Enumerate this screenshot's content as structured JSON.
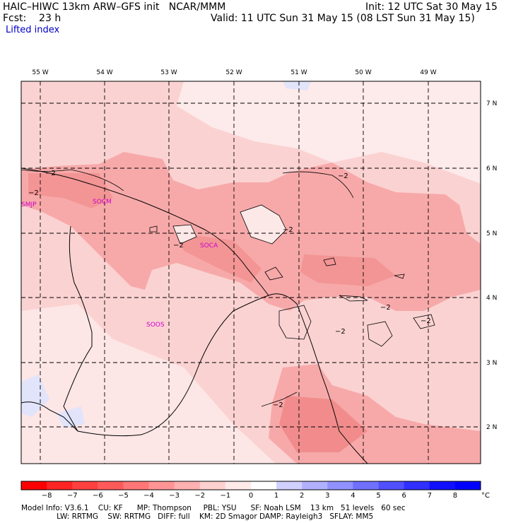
{
  "header": {
    "title_left": "HAIC–HIWC 13km ARW–GFS init   NCAR/MMM",
    "fcst": "Fcst:    23 h",
    "init": "Init: 12 UTC Sat 30 May 15",
    "valid": "Valid: 11 UTC Sun 31 May 15 (08 LST Sun 31 May 15)",
    "field": "Lifted index"
  },
  "map": {
    "lon_labels": [
      "55 W",
      "54 W",
      "53 W",
      "52 W",
      "51 W",
      "50 W",
      "49 W"
    ],
    "lat_labels": [
      "7 N",
      "6 N",
      "5 N",
      "4 N",
      "3 N",
      "2 N"
    ],
    "stations": [
      "SMJP",
      "SOCM",
      "SOCA",
      "SOOS"
    ],
    "contour_label": "−2",
    "colors": {
      "strong": "#f28c8c",
      "mid": "#f7a9a9",
      "light": "#fbd2d2",
      "pale": "#fde8e8",
      "blue": "#e2e4fb",
      "station": "#cc00cc"
    }
  },
  "colorbar": {
    "ticks": [
      "−8",
      "−7",
      "−6",
      "−5",
      "−4",
      "−3",
      "−2",
      "−1",
      "0",
      "1",
      "2",
      "3",
      "4",
      "5",
      "6",
      "7",
      "8"
    ],
    "unit": "°C",
    "colors": [
      "#ff0000",
      "#ff2424",
      "#ff4040",
      "#ff5a5a",
      "#ff7676",
      "#ff9494",
      "#ffb0b0",
      "#ffd0d0",
      "#ffeaea",
      "#ffffff",
      "#d0d0ff",
      "#b0b0ff",
      "#9090ff",
      "#7070ff",
      "#5050ff",
      "#3030ff",
      "#1010ff",
      "#0000ff"
    ]
  },
  "footer": {
    "line1": "Model Info: V3.6.1    CU: KF      MP: Thompson     PBL: YSU      SF: Noah LSM    13 km   51 levels   60 sec",
    "line2": "               LW: RRTMG    SW: RRTMG   DIFF: full    KM: 2D Smagor DAMP: Rayleigh3   SFLAY: MM5"
  }
}
